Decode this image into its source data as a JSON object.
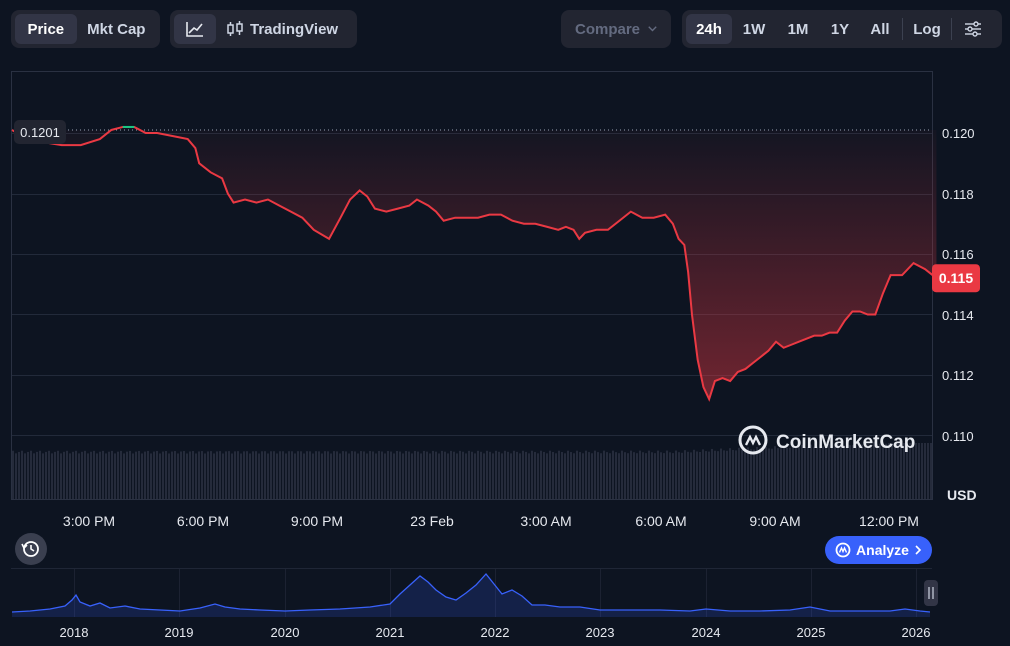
{
  "toolbar": {
    "view_tabs": [
      {
        "label": "Price",
        "active": true
      },
      {
        "label": "Mkt Cap",
        "active": false
      }
    ],
    "chart_tool_label": "TradingView",
    "compare_label": "Compare",
    "ranges": [
      {
        "label": "24h",
        "active": true
      },
      {
        "label": "1W",
        "active": false
      },
      {
        "label": "1M",
        "active": false
      },
      {
        "label": "1Y",
        "active": false
      },
      {
        "label": "All",
        "active": false
      }
    ],
    "log_label": "Log"
  },
  "chart": {
    "open_label": "0.1201",
    "current_label": "0.115",
    "currency_label": "USD",
    "watermark": "CoinMarketCap",
    "analyze_label": "Analyze"
  },
  "colors": {
    "background": "#0d1421",
    "line_down": "#ea3943",
    "line_up": "#16c784",
    "volume": "#252b3b",
    "navigator_line": "#3861fb",
    "analyze_button": "#3861fb"
  },
  "chart_data": {
    "type": "line",
    "ylabel": "USD",
    "ylim": [
      0.1095,
      0.1218
    ],
    "y_ticks": [
      0.12,
      0.118,
      0.116,
      0.114,
      0.112,
      0.11
    ],
    "y_tick_labels": [
      "0.120",
      "0.118",
      "0.116",
      "0.114",
      "0.112",
      "0.110"
    ],
    "baseline": 0.1201,
    "x_ticks": [
      {
        "label": "3:00 PM",
        "hours": 2.07
      },
      {
        "label": "6:00 PM",
        "hours": 5.07
      },
      {
        "label": "9:00 PM",
        "hours": 8.07
      },
      {
        "label": "23 Feb",
        "hours": 11.07
      },
      {
        "label": "3:00 AM",
        "hours": 14.07
      },
      {
        "label": "6:00 AM",
        "hours": 17.07
      },
      {
        "label": "9:00 AM",
        "hours": 20.07
      },
      {
        "label": "12:00 PM",
        "hours": 23.07
      }
    ],
    "points": [
      [
        0.0,
        0.1201
      ],
      [
        0.4,
        0.1198
      ],
      [
        0.8,
        0.1197
      ],
      [
        1.3,
        0.1196
      ],
      [
        1.8,
        0.1196
      ],
      [
        2.3,
        0.1198
      ],
      [
        2.6,
        0.1201
      ],
      [
        2.9,
        0.1202
      ],
      [
        3.2,
        0.1202
      ],
      [
        3.5,
        0.12
      ],
      [
        3.8,
        0.12
      ],
      [
        4.2,
        0.1199
      ],
      [
        4.6,
        0.1198
      ],
      [
        4.8,
        0.1195
      ],
      [
        4.9,
        0.119
      ],
      [
        5.2,
        0.1187
      ],
      [
        5.5,
        0.1185
      ],
      [
        5.65,
        0.118
      ],
      [
        5.8,
        0.1177
      ],
      [
        6.1,
        0.1178
      ],
      [
        6.4,
        0.1177
      ],
      [
        6.7,
        0.1178
      ],
      [
        7.0,
        0.1176
      ],
      [
        7.3,
        0.1174
      ],
      [
        7.6,
        0.1172
      ],
      [
        7.9,
        0.1168
      ],
      [
        8.3,
        0.1165
      ],
      [
        8.6,
        0.1172
      ],
      [
        8.85,
        0.1178
      ],
      [
        9.1,
        0.1181
      ],
      [
        9.3,
        0.1179
      ],
      [
        9.5,
        0.1175
      ],
      [
        9.8,
        0.1174
      ],
      [
        10.1,
        0.1175
      ],
      [
        10.4,
        0.1176
      ],
      [
        10.6,
        0.1178
      ],
      [
        10.9,
        0.1176
      ],
      [
        11.1,
        0.1174
      ],
      [
        11.3,
        0.1171
      ],
      [
        11.6,
        0.1172
      ],
      [
        11.9,
        0.1172
      ],
      [
        12.2,
        0.1172
      ],
      [
        12.5,
        0.1173
      ],
      [
        12.8,
        0.1173
      ],
      [
        13.1,
        0.1171
      ],
      [
        13.4,
        0.117
      ],
      [
        13.7,
        0.117
      ],
      [
        14.0,
        0.1169
      ],
      [
        14.3,
        0.1168
      ],
      [
        14.5,
        0.1169
      ],
      [
        14.7,
        0.1168
      ],
      [
        14.85,
        0.1165
      ],
      [
        15.0,
        0.1167
      ],
      [
        15.3,
        0.1168
      ],
      [
        15.6,
        0.1168
      ],
      [
        15.9,
        0.1171
      ],
      [
        16.2,
        0.1174
      ],
      [
        16.5,
        0.1172
      ],
      [
        16.8,
        0.1172
      ],
      [
        17.1,
        0.1173
      ],
      [
        17.3,
        0.117
      ],
      [
        17.45,
        0.1165
      ],
      [
        17.6,
        0.1163
      ],
      [
        17.7,
        0.1154
      ],
      [
        17.8,
        0.114
      ],
      [
        17.95,
        0.1125
      ],
      [
        18.1,
        0.1116
      ],
      [
        18.25,
        0.1112
      ],
      [
        18.4,
        0.1118
      ],
      [
        18.6,
        0.1119
      ],
      [
        18.8,
        0.1118
      ],
      [
        19.0,
        0.1121
      ],
      [
        19.2,
        0.1122
      ],
      [
        19.4,
        0.1124
      ],
      [
        19.6,
        0.1126
      ],
      [
        19.8,
        0.1128
      ],
      [
        20.0,
        0.1131
      ],
      [
        20.2,
        0.1129
      ],
      [
        20.4,
        0.113
      ],
      [
        20.6,
        0.1131
      ],
      [
        20.8,
        0.1132
      ],
      [
        21.0,
        0.1133
      ],
      [
        21.2,
        0.1133
      ],
      [
        21.4,
        0.1134
      ],
      [
        21.6,
        0.1134
      ],
      [
        21.8,
        0.1138
      ],
      [
        22.0,
        0.1141
      ],
      [
        22.2,
        0.1141
      ],
      [
        22.4,
        0.114
      ],
      [
        22.6,
        0.114
      ],
      [
        22.8,
        0.1147
      ],
      [
        23.0,
        0.1153
      ],
      [
        23.3,
        0.1153
      ],
      [
        23.6,
        0.1157
      ],
      [
        23.9,
        0.1155
      ],
      [
        24.2,
        0.1152
      ]
    ]
  },
  "navigator": {
    "years": [
      "2018",
      "2019",
      "2020",
      "2021",
      "2022",
      "2023",
      "2024",
      "2025",
      "2026"
    ]
  }
}
